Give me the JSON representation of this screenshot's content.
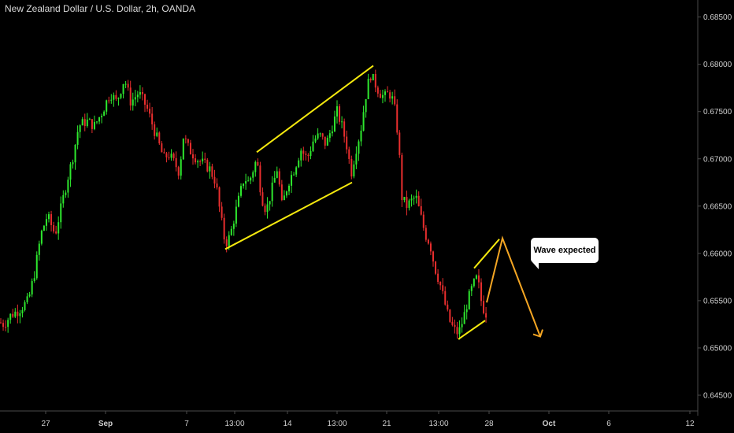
{
  "header": {
    "title": "New Zealand Dollar / U.S. Dollar, 2h, OANDA"
  },
  "annotation": {
    "callout_text": "Wave expected"
  },
  "colors": {
    "up": "#2ee82e",
    "down": "#e82e2e",
    "pattern": "#f5e90e",
    "projection": "#f5a623",
    "background": "#000000",
    "axis": "#555555"
  },
  "chart_data": {
    "type": "candlestick",
    "instrument": "NZD/USD",
    "timeframe": "2h",
    "source": "OANDA",
    "ylim": [
      0.6445,
      0.6858
    ],
    "y_ticks": [
      "0.68500",
      "0.68000",
      "0.67500",
      "0.67000",
      "0.66500",
      "0.66000",
      "0.65500",
      "0.65000",
      "0.64500"
    ],
    "x_ticks": [
      "27",
      "Sep",
      "7",
      "13:00",
      "14",
      "13:00",
      "21",
      "13:00",
      "28",
      "Oct",
      "6",
      "12"
    ],
    "price_path": [
      [
        0,
        0.6527
      ],
      [
        5,
        0.6525
      ],
      [
        14,
        0.6535
      ],
      [
        24,
        0.654
      ],
      [
        36,
        0.655
      ],
      [
        44,
        0.658
      ],
      [
        52,
        0.662
      ],
      [
        60,
        0.664
      ],
      [
        70,
        0.662
      ],
      [
        78,
        0.665
      ],
      [
        86,
        0.668
      ],
      [
        92,
        0.67
      ],
      [
        100,
        0.6735
      ],
      [
        110,
        0.674
      ],
      [
        120,
        0.6735
      ],
      [
        130,
        0.675
      ],
      [
        140,
        0.677
      ],
      [
        148,
        0.676
      ],
      [
        158,
        0.6785
      ],
      [
        166,
        0.676
      ],
      [
        176,
        0.677
      ],
      [
        186,
        0.6755
      ],
      [
        194,
        0.6735
      ],
      [
        202,
        0.6715
      ],
      [
        208,
        0.67
      ],
      [
        214,
        0.6705
      ],
      [
        222,
        0.6695
      ],
      [
        228,
        0.6685
      ],
      [
        232,
        0.6725
      ],
      [
        240,
        0.671
      ],
      [
        250,
        0.67
      ],
      [
        258,
        0.6695
      ],
      [
        266,
        0.669
      ],
      [
        274,
        0.6675
      ],
      [
        280,
        0.664
      ],
      [
        286,
        0.661
      ],
      [
        292,
        0.6618
      ],
      [
        298,
        0.664
      ],
      [
        304,
        0.666
      ],
      [
        310,
        0.668
      ],
      [
        316,
        0.6675
      ],
      [
        322,
        0.669
      ],
      [
        326,
        0.67
      ],
      [
        332,
        0.666
      ],
      [
        338,
        0.6645
      ],
      [
        346,
        0.667
      ],
      [
        352,
        0.669
      ],
      [
        358,
        0.665
      ],
      [
        366,
        0.6675
      ],
      [
        374,
        0.669
      ],
      [
        382,
        0.671
      ],
      [
        390,
        0.67
      ],
      [
        398,
        0.672
      ],
      [
        406,
        0.6725
      ],
      [
        414,
        0.6715
      ],
      [
        422,
        0.6735
      ],
      [
        428,
        0.675
      ],
      [
        434,
        0.6735
      ],
      [
        440,
        0.6715
      ],
      [
        446,
        0.6685
      ],
      [
        452,
        0.671
      ],
      [
        458,
        0.673
      ],
      [
        464,
        0.6765
      ],
      [
        470,
        0.679
      ],
      [
        476,
        0.678
      ],
      [
        482,
        0.677
      ],
      [
        488,
        0.6765
      ],
      [
        494,
        0.677
      ],
      [
        500,
        0.676
      ],
      [
        506,
        0.672
      ],
      [
        510,
        0.666
      ],
      [
        516,
        0.665
      ],
      [
        522,
        0.6655
      ],
      [
        528,
        0.666
      ],
      [
        534,
        0.664
      ],
      [
        540,
        0.662
      ],
      [
        546,
        0.661
      ],
      [
        552,
        0.6585
      ],
      [
        558,
        0.657
      ],
      [
        564,
        0.655
      ],
      [
        570,
        0.653
      ],
      [
        576,
        0.652
      ],
      [
        582,
        0.6515
      ],
      [
        588,
        0.653
      ],
      [
        594,
        0.655
      ],
      [
        600,
        0.6565
      ],
      [
        606,
        0.6575
      ],
      [
        612,
        0.6545
      ],
      [
        618,
        0.6535
      ]
    ],
    "channel": {
      "upper": [
        [
          326,
          0.6707
        ],
        [
          474,
          0.67985
        ]
      ],
      "lower": [
        [
          286,
          0.66045
        ],
        [
          447,
          0.6675
        ]
      ]
    },
    "wedge": {
      "upper": [
        [
          602,
          0.65843
        ],
        [
          634,
          0.6615
        ]
      ],
      "lower": [
        [
          582,
          0.65093
        ],
        [
          616,
          0.6529
        ]
      ]
    },
    "projection": [
      [
        618,
        0.6548
      ],
      [
        638,
        0.6616
      ],
      [
        686,
        0.6512
      ]
    ]
  }
}
